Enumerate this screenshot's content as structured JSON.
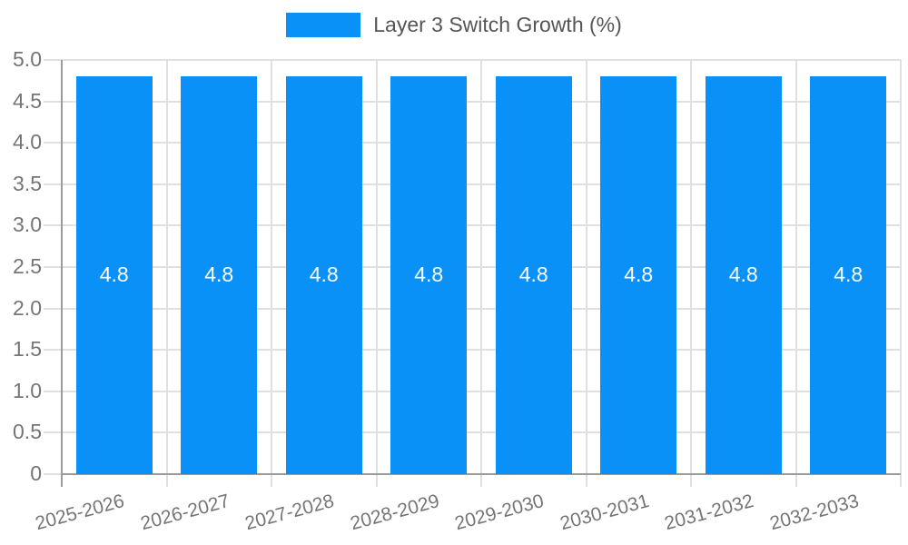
{
  "legend": {
    "label": "Layer 3 Switch Growth (%)"
  },
  "chart_data": {
    "type": "bar",
    "title": "",
    "xlabel": "",
    "ylabel": "",
    "categories": [
      "2025-2026",
      "2026-2027",
      "2027-2028",
      "2028-2029",
      "2029-2030",
      "2030-2031",
      "2031-2032",
      "2032-2033"
    ],
    "series": [
      {
        "name": "Layer 3 Switch Growth (%)",
        "values": [
          4.8,
          4.8,
          4.8,
          4.8,
          4.8,
          4.8,
          4.8,
          4.8
        ]
      }
    ],
    "bar_value_labels": [
      "4.8",
      "4.8",
      "4.8",
      "4.8",
      "4.8",
      "4.8",
      "4.8",
      "4.8"
    ],
    "ylim": [
      0,
      5
    ],
    "ytick_step": 0.5,
    "ytick_labels": [
      "0",
      "0.5",
      "1.0",
      "1.5",
      "2.0",
      "2.5",
      "3.0",
      "3.5",
      "4.0",
      "4.5",
      "5.0"
    ],
    "grid": true,
    "legend_position": "top-center",
    "colors": {
      "bar": "#0991F8",
      "bar_label_text": "#ffffff",
      "legend_text": "#555555",
      "tick_text": "#757575",
      "gridline": "#e0e0e0",
      "axis_line": "#9b9b9b"
    }
  }
}
